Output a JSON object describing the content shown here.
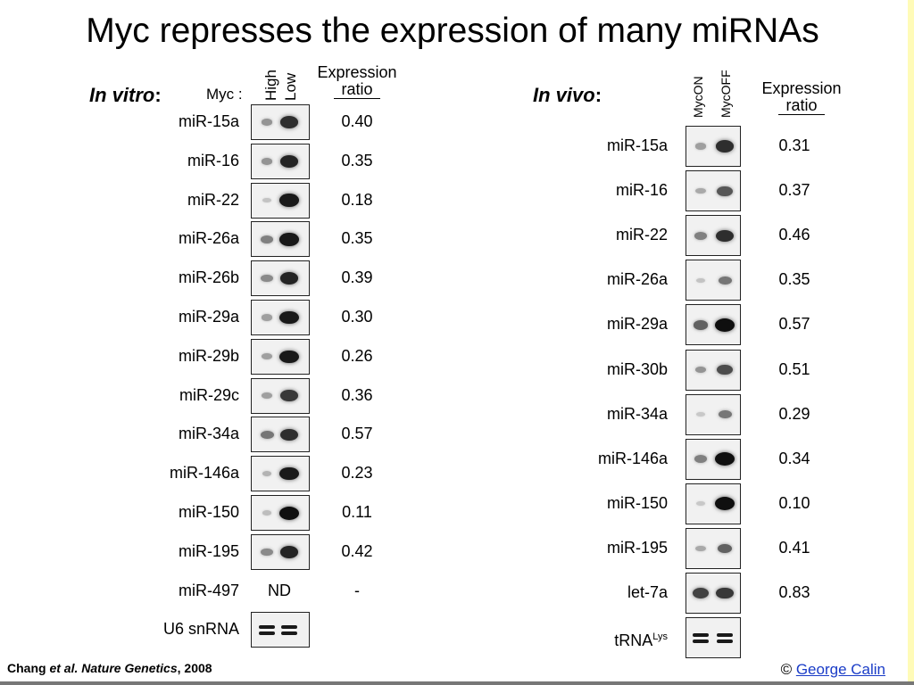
{
  "title": "Myc represses the expression of many miRNAs",
  "chart_data": [
    {
      "type": "table",
      "section_label": "In vitro",
      "section_colon": ":",
      "factor_label": "Myc :",
      "conditions": [
        "High",
        "Low"
      ],
      "value_header": [
        "Expression",
        "ratio"
      ],
      "rows": [
        {
          "label": "miR-15a",
          "ratio": "0.40",
          "band_a": 0.35,
          "band_b": 0.85
        },
        {
          "label": "miR-16",
          "ratio": "0.35",
          "band_a": 0.35,
          "band_b": 0.9
        },
        {
          "label": "miR-22",
          "ratio": "0.18",
          "band_a": 0.12,
          "band_b": 0.95
        },
        {
          "label": "miR-26a",
          "ratio": "0.35",
          "band_a": 0.45,
          "band_b": 0.95
        },
        {
          "label": "miR-26b",
          "ratio": "0.39",
          "band_a": 0.4,
          "band_b": 0.9
        },
        {
          "label": "miR-29a",
          "ratio": "0.30",
          "band_a": 0.3,
          "band_b": 0.95
        },
        {
          "label": "miR-29b",
          "ratio": "0.26",
          "band_a": 0.3,
          "band_b": 0.95
        },
        {
          "label": "miR-29c",
          "ratio": "0.36",
          "band_a": 0.3,
          "band_b": 0.8
        },
        {
          "label": "miR-34a",
          "ratio": "0.57",
          "band_a": 0.5,
          "band_b": 0.85
        },
        {
          "label": "miR-146a",
          "ratio": "0.23",
          "band_a": 0.2,
          "band_b": 0.95
        },
        {
          "label": "miR-150",
          "ratio": "0.11",
          "band_a": 0.15,
          "band_b": 1.0
        },
        {
          "label": "miR-195",
          "ratio": "0.42",
          "band_a": 0.4,
          "band_b": 0.9
        },
        {
          "label": "miR-497",
          "ratio": "-",
          "blot_text": "ND"
        },
        {
          "label": "U6 snRNA",
          "ratio": "",
          "band_a": 0.95,
          "band_b": 0.95,
          "loading": true
        }
      ]
    },
    {
      "type": "table",
      "section_label": "In vivo",
      "section_colon": ":",
      "conditions": [
        "MycON",
        "MycOFF"
      ],
      "value_header": [
        "Expression",
        "ratio"
      ],
      "rows": [
        {
          "label": "miR-15a",
          "ratio": "0.31",
          "band_a": 0.3,
          "band_b": 0.85
        },
        {
          "label": "miR-16",
          "ratio": "0.37",
          "band_a": 0.25,
          "band_b": 0.65
        },
        {
          "label": "miR-22",
          "ratio": "0.46",
          "band_a": 0.45,
          "band_b": 0.85
        },
        {
          "label": "miR-26a",
          "ratio": "0.35",
          "band_a": 0.12,
          "band_b": 0.5
        },
        {
          "label": "miR-29a",
          "ratio": "0.57",
          "band_a": 0.6,
          "band_b": 1.0
        },
        {
          "label": "miR-30b",
          "ratio": "0.51",
          "band_a": 0.35,
          "band_b": 0.7
        },
        {
          "label": "miR-34a",
          "ratio": "0.29",
          "band_a": 0.1,
          "band_b": 0.5
        },
        {
          "label": "miR-146a",
          "ratio": "0.34",
          "band_a": 0.45,
          "band_b": 1.0
        },
        {
          "label": "miR-150",
          "ratio": "0.10",
          "band_a": 0.1,
          "band_b": 1.0
        },
        {
          "label": "miR-195",
          "ratio": "0.41",
          "band_a": 0.25,
          "band_b": 0.6
        },
        {
          "label": "let-7a",
          "ratio": "0.83",
          "band_a": 0.75,
          "band_b": 0.8
        },
        {
          "label": "tRNA",
          "label_sup": "Lys",
          "ratio": "",
          "band_a": 0.95,
          "band_b": 0.95,
          "loading": true
        }
      ]
    }
  ],
  "footer": {
    "citation_author": "Chang",
    "citation_etal": "et al.",
    "citation_journal": "Nature Genetics",
    "citation_year": ", 2008",
    "copyright_symbol": "©",
    "copyright_link": "George Calin"
  },
  "colors": {
    "blot_background": "#f1f1f1",
    "band": "#111111",
    "link": "#1a3cc7",
    "edge_bar": "#fffbb8"
  }
}
